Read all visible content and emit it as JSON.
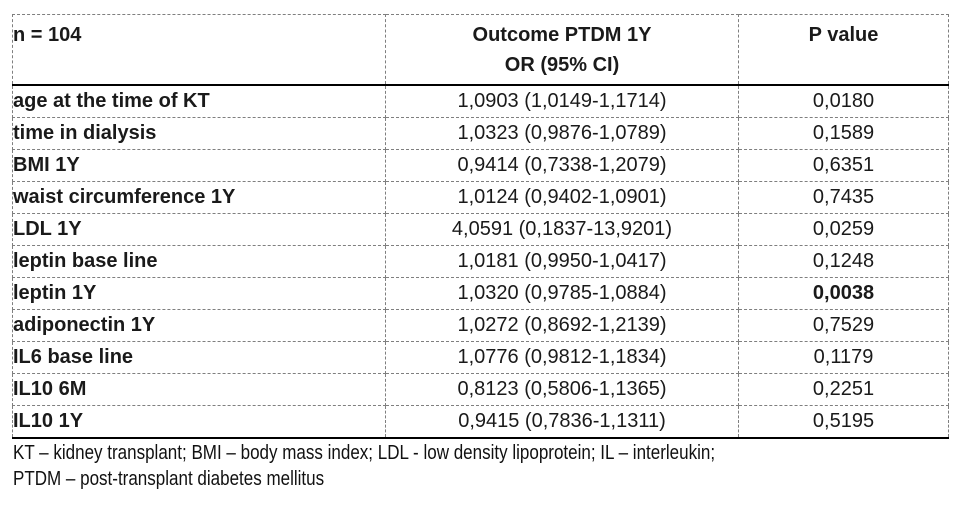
{
  "table": {
    "accent_green": "#70AD47",
    "header": {
      "n_label": "n = 104",
      "outcome_line1": "Outcome PTDM 1Y",
      "outcome_line2": "OR (95% CI)",
      "p_value_label": "P value"
    },
    "rows": [
      {
        "label": "age at the time of KT",
        "or_ci": "1,0903 (1,0149-1,1714)",
        "p": "0,0180",
        "p_bold": false
      },
      {
        "label": "time in dialysis",
        "or_ci": "1,0323 (0,9876-1,0789)",
        "p": "0,1589",
        "p_bold": false
      },
      {
        "label": "BMI 1Y",
        "or_ci": "0,9414 (0,7338-1,2079)",
        "p": "0,6351",
        "p_bold": false
      },
      {
        "label": "waist circumference 1Y",
        "or_ci": "1,0124 (0,9402-1,0901)",
        "p": "0,7435",
        "p_bold": false
      },
      {
        "label": "LDL 1Y",
        "or_ci": "4,0591 (0,1837-13,9201)",
        "p": "0,0259",
        "p_bold": false
      },
      {
        "label": "leptin base line",
        "or_ci": "1,0181 (0,9950-1,0417)",
        "p": "0,1248",
        "p_bold": false
      },
      {
        "label": "leptin 1Y",
        "or_ci": "1,0320 (0,9785-1,0884)",
        "p": "0,0038",
        "p_bold": true
      },
      {
        "label": "adiponectin 1Y",
        "or_ci": "1,0272 (0,8692-1,2139)",
        "p": "0,7529",
        "p_bold": false
      },
      {
        "label": "IL6 base line",
        "or_ci": "1,0776 (0,9812-1,1834)",
        "p": "0,1179",
        "p_bold": false
      },
      {
        "label": "IL10 6M",
        "or_ci": "0,8123 (0,5806-1,1365)",
        "p": "0,2251",
        "p_bold": false
      },
      {
        "label": "IL10 1Y",
        "or_ci": "0,9415 (0,7836-1,1311)",
        "p": "0,5195",
        "p_bold": false
      }
    ],
    "footnote_line1": "KT – kidney transplant; BMI – body mass index; LDL - low density lipoprotein; IL – interleukin;",
    "footnote_line2": "PTDM – post-transplant diabetes mellitus"
  }
}
